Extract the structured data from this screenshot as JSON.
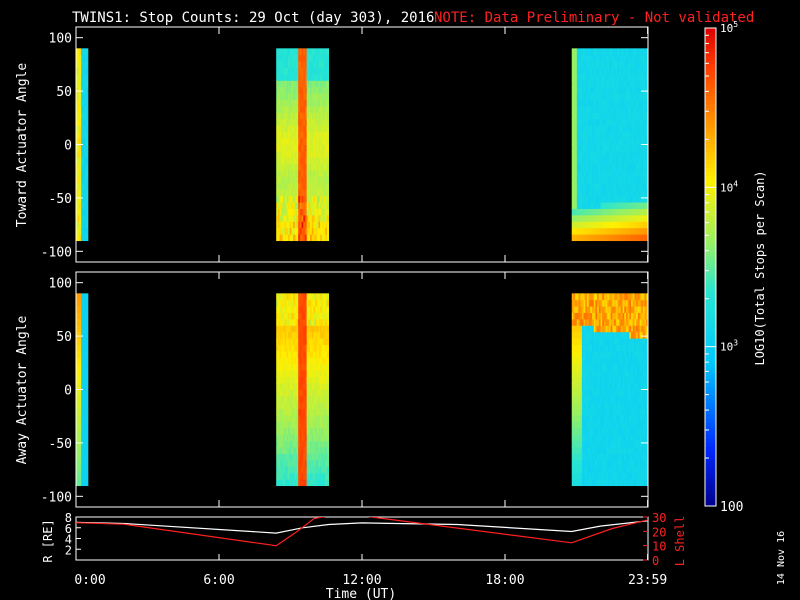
{
  "header": {
    "title": "TWINS1: Stop Counts: 29 Oct (day 303), 2016",
    "note": "NOTE: Data Preliminary - Not validated"
  },
  "panels": {
    "toward": {
      "ylabel": "Toward Actuator Angle"
    },
    "away": {
      "ylabel": "Away Actuator Angle"
    },
    "ephemeris": {
      "ylabel_left": "R [RE]",
      "ylabel_right": "L Shell"
    }
  },
  "colorbar": {
    "label": "LOG10(Total Stops per Scan)",
    "tick_top": "10^5",
    "tick_1e4": "10^4",
    "tick_1e3": "10^3",
    "tick_bottom": "100",
    "range_log": [
      2,
      5
    ]
  },
  "xaxis": {
    "label": "Time (UT)",
    "ticks": [
      "0:00",
      "6:00",
      "12:00",
      "18:00",
      "23:59"
    ],
    "tick_hours": [
      0,
      6,
      12,
      18,
      23.983
    ]
  },
  "side_date": "14 Nov 16",
  "colors": {
    "note": "#ff2020",
    "axes": "#ffffff",
    "lshell": "#ff2020",
    "radius": "#ffffff"
  },
  "chart_data": [
    {
      "type": "heatmap",
      "name": "toward",
      "ylim": [
        -110,
        110
      ],
      "yticks": [
        -100,
        -50,
        0,
        50,
        100
      ],
      "xlim_hours": [
        0,
        24
      ],
      "data_intervals_hours": [
        [
          0.0,
          0.5
        ],
        [
          8.4,
          10.6
        ],
        [
          20.8,
          24.0
        ]
      ]
    },
    {
      "type": "heatmap",
      "name": "away",
      "ylim": [
        -110,
        110
      ],
      "yticks": [
        -100,
        -50,
        0,
        50,
        100
      ],
      "xlim_hours": [
        0,
        24
      ],
      "data_intervals_hours": [
        [
          0.0,
          0.5
        ],
        [
          8.4,
          10.6
        ],
        [
          20.8,
          24.0
        ]
      ]
    },
    {
      "type": "line",
      "name": "ephemeris",
      "left_ylim": [
        0,
        8
      ],
      "left_yticks": [
        2,
        4,
        6,
        8
      ],
      "right_ylim": [
        0,
        30
      ],
      "right_yticks": [
        0,
        10,
        20,
        30
      ],
      "series_r": {
        "x": [
          0,
          2,
          8.4,
          9.5,
          10.6,
          12,
          16,
          20.8,
          22,
          24
        ],
        "y": [
          7.0,
          6.8,
          5.0,
          6.0,
          6.6,
          6.9,
          6.6,
          5.3,
          6.3,
          7.3
        ]
      },
      "series_l": {
        "x": [
          0,
          2,
          8.4,
          9.2,
          10.0,
          10.7,
          12.0,
          12.4,
          20.8,
          22.5,
          24.0
        ],
        "y": [
          26,
          25,
          10,
          19,
          29,
          31,
          31,
          30,
          12,
          22,
          28
        ]
      }
    }
  ]
}
